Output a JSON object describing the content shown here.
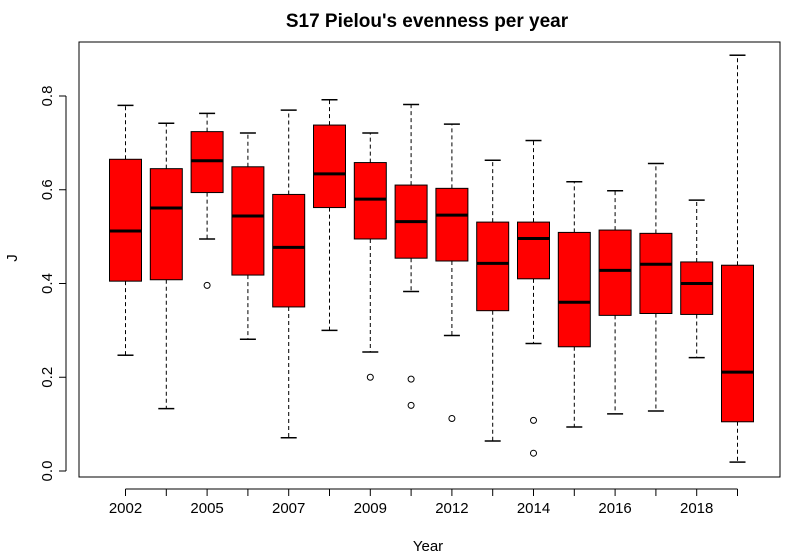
{
  "chart_data": {
    "type": "boxplot",
    "title": "S17 Pielou's evenness per year",
    "xlabel": "Year",
    "ylabel": "J",
    "ylim": [
      0.0,
      0.9
    ],
    "yticks": [
      0.0,
      0.2,
      0.4,
      0.6,
      0.8
    ],
    "ytick_labels": [
      "0.0",
      "0.2",
      "0.4",
      "0.6",
      "0.8"
    ],
    "xtick_labels": [
      "2002",
      "",
      "2005",
      "",
      "2007",
      "",
      "2009",
      "",
      "2012",
      "",
      "2014",
      "",
      "2016",
      "",
      "2018",
      ""
    ],
    "box_color": "#ff0000",
    "grid": false,
    "boxes": [
      {
        "q1": 0.405,
        "median": 0.512,
        "q3": 0.665,
        "whisker_low": 0.247,
        "whisker_high": 0.78,
        "outliers": []
      },
      {
        "q1": 0.408,
        "median": 0.561,
        "q3": 0.645,
        "whisker_low": 0.133,
        "whisker_high": 0.742,
        "outliers": []
      },
      {
        "q1": 0.594,
        "median": 0.662,
        "q3": 0.724,
        "whisker_low": 0.495,
        "whisker_high": 0.763,
        "outliers": [
          0.396
        ]
      },
      {
        "q1": 0.418,
        "median": 0.544,
        "q3": 0.649,
        "whisker_low": 0.281,
        "whisker_high": 0.721,
        "outliers": []
      },
      {
        "q1": 0.35,
        "median": 0.477,
        "q3": 0.59,
        "whisker_low": 0.071,
        "whisker_high": 0.77,
        "outliers": []
      },
      {
        "q1": 0.562,
        "median": 0.634,
        "q3": 0.738,
        "whisker_low": 0.3,
        "whisker_high": 0.792,
        "outliers": []
      },
      {
        "q1": 0.495,
        "median": 0.58,
        "q3": 0.658,
        "whisker_low": 0.254,
        "whisker_high": 0.721,
        "outliers": [
          0.2
        ]
      },
      {
        "q1": 0.454,
        "median": 0.532,
        "q3": 0.61,
        "whisker_low": 0.383,
        "whisker_high": 0.782,
        "outliers": [
          0.196,
          0.14
        ]
      },
      {
        "q1": 0.448,
        "median": 0.546,
        "q3": 0.603,
        "whisker_low": 0.289,
        "whisker_high": 0.74,
        "outliers": [
          0.112
        ]
      },
      {
        "q1": 0.342,
        "median": 0.443,
        "q3": 0.531,
        "whisker_low": 0.064,
        "whisker_high": 0.663,
        "outliers": []
      },
      {
        "q1": 0.41,
        "median": 0.496,
        "q3": 0.531,
        "whisker_low": 0.272,
        "whisker_high": 0.705,
        "outliers": [
          0.108,
          0.038
        ]
      },
      {
        "q1": 0.265,
        "median": 0.36,
        "q3": 0.509,
        "whisker_low": 0.094,
        "whisker_high": 0.617,
        "outliers": []
      },
      {
        "q1": 0.332,
        "median": 0.428,
        "q3": 0.514,
        "whisker_low": 0.122,
        "whisker_high": 0.598,
        "outliers": []
      },
      {
        "q1": 0.336,
        "median": 0.441,
        "q3": 0.507,
        "whisker_low": 0.128,
        "whisker_high": 0.656,
        "outliers": []
      },
      {
        "q1": 0.334,
        "median": 0.4,
        "q3": 0.446,
        "whisker_low": 0.242,
        "whisker_high": 0.578,
        "outliers": []
      },
      {
        "q1": 0.105,
        "median": 0.211,
        "q3": 0.439,
        "whisker_low": 0.019,
        "whisker_high": 0.887,
        "outliers": []
      }
    ]
  }
}
